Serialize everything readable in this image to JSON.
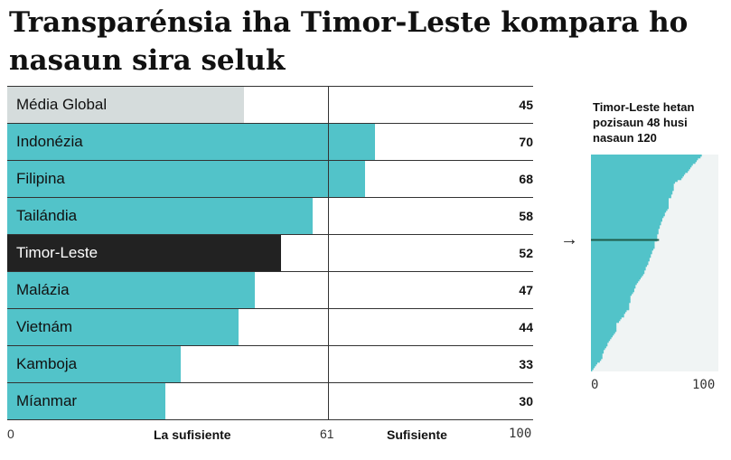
{
  "title": "Transparénsia iha Timor-Leste kompara ho nasaun sira seluk",
  "chart_data": [
    {
      "type": "bar",
      "orientation": "horizontal",
      "xlim": [
        0,
        100
      ],
      "threshold": 61,
      "categories": [
        "Média Global",
        "Indonézia",
        "Filipina",
        "Tailándia",
        "Timor-Leste",
        "Malázia",
        "Vietnám",
        "Kamboja",
        "Míanmar"
      ],
      "values": [
        45,
        70,
        68,
        58,
        52,
        47,
        44,
        33,
        30
      ],
      "highlight": "Timor-Leste",
      "ticks": [
        "0",
        "61",
        "100"
      ],
      "zone_labels": [
        "La sufisiente",
        "Sufisiente"
      ],
      "colors": {
        "bar": "#52c3c9",
        "global": "#d5dcdc",
        "highlight": "#222222"
      }
    },
    {
      "type": "bar",
      "orientation": "horizontal",
      "sorted": "descending",
      "title": "Timor-Leste hetan pozisaun 48 husi nasaun 120",
      "xlim": [
        0,
        100
      ],
      "ticks": [
        "0",
        "100"
      ],
      "highlight_rank": 48,
      "values": [
        87,
        86,
        84,
        83,
        82,
        80,
        79,
        78,
        77,
        76,
        74,
        73,
        72,
        71,
        68,
        66,
        65,
        65,
        65,
        65,
        64,
        64,
        63,
        63,
        61,
        61,
        61,
        61,
        61,
        61,
        60,
        59,
        58,
        58,
        57,
        56,
        56,
        55,
        55,
        54,
        54,
        53,
        53,
        53,
        52,
        52,
        52,
        52,
        50,
        50,
        50,
        50,
        49,
        48,
        48,
        47,
        47,
        46,
        46,
        45,
        45,
        44,
        43,
        43,
        42,
        42,
        41,
        40,
        39,
        38,
        37,
        36,
        35,
        35,
        34,
        34,
        33,
        32,
        31,
        31,
        31,
        31,
        30,
        30,
        30,
        30,
        28,
        27,
        26,
        26,
        24,
        23,
        22,
        20,
        20,
        20,
        20,
        20,
        19,
        18,
        17,
        16,
        15,
        14,
        13,
        13,
        12,
        11,
        10,
        10,
        9,
        9,
        9,
        8,
        7,
        5,
        4,
        3,
        2,
        1
      ],
      "colors": {
        "bar": "#52c3c9",
        "background": "#f0f4f4",
        "marker": "#1f5c4a"
      }
    }
  ],
  "arrow_icon": "right-arrow"
}
